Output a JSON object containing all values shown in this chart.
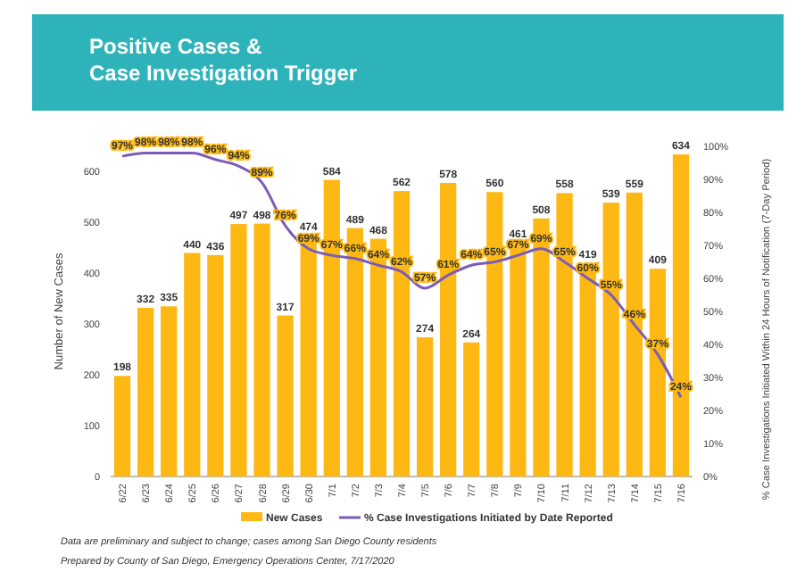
{
  "chart_data": {
    "type": "bar",
    "title": "Positive Cases &\nCase Investigation Trigger",
    "categories": [
      "6/22",
      "6/23",
      "6/24",
      "6/25",
      "6/26",
      "6/27",
      "6/28",
      "6/29",
      "6/30",
      "7/1",
      "7/2",
      "7/3",
      "7/4",
      "7/5",
      "7/6",
      "7/7",
      "7/8",
      "7/9",
      "7/10",
      "7/11",
      "7/12",
      "7/13",
      "7/14",
      "7/15",
      "7/16"
    ],
    "series": [
      {
        "name": "New Cases",
        "color": "#fdb813",
        "values": [
          198,
          332,
          335,
          440,
          436,
          497,
          498,
          317,
          474,
          584,
          489,
          468,
          562,
          274,
          578,
          264,
          560,
          461,
          508,
          558,
          419,
          539,
          559,
          409,
          634
        ]
      },
      {
        "name": "% Case Investigations Initiated by Date Reported",
        "type": "line",
        "axis": "y2",
        "color": "#7b5cb8",
        "values": [
          97,
          98,
          98,
          98,
          96,
          94,
          89,
          76,
          69,
          67,
          66,
          64,
          62,
          57,
          61,
          64,
          65,
          67,
          69,
          65,
          60,
          55,
          46,
          37,
          24
        ],
        "value_labels": [
          "97%",
          "98%",
          "98%",
          "98%",
          "96%",
          "94%",
          "89%",
          "76%",
          "69%",
          "67%",
          "66%",
          "64%",
          "62%",
          "57%",
          "61%",
          "64%",
          "65%",
          "67%",
          "69%",
          "65%",
          "60%",
          "55%",
          "46%",
          "37%",
          "24%"
        ]
      }
    ],
    "data_labels": true,
    "ylabel": "Number of New Cases",
    "y2label": "% Case Investigations Initiated Within 24 Hours of Notification (7-Day Period)",
    "ylim": [
      0,
      650
    ],
    "yticks": [
      0,
      100,
      200,
      300,
      400,
      500,
      600
    ],
    "y2lim": [
      0,
      100
    ],
    "y2ticks": [
      {
        "value": 0,
        "label": "0%"
      },
      {
        "value": 10,
        "label": "10%"
      },
      {
        "value": 20,
        "label": "20%"
      },
      {
        "value": 30,
        "label": "30%"
      },
      {
        "value": 40,
        "label": "40%"
      },
      {
        "value": 50,
        "label": "50%"
      },
      {
        "value": 60,
        "label": "60%"
      },
      {
        "value": 70,
        "label": "70%"
      },
      {
        "value": 80,
        "label": "80%"
      },
      {
        "value": 90,
        "label": "90%"
      },
      {
        "value": 100,
        "label": "100%"
      }
    ],
    "legend": "bottom",
    "grid": false,
    "annotations": [
      "Data are preliminary and subject to change; cases among San Diego County residents",
      "Prepared by County of San Diego, Emergency Operations Center, 7/17/2020"
    ]
  }
}
